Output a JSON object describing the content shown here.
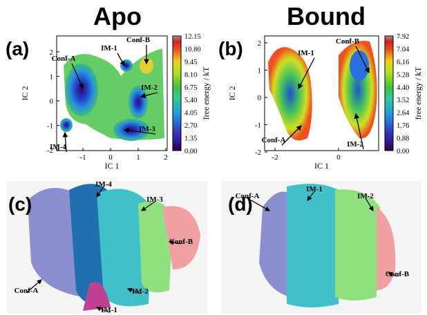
{
  "titles": [
    "Apo",
    "Bound"
  ],
  "panels": [
    {
      "label": "(a)",
      "x_label": "IC 1",
      "y_label": "IC 2",
      "xticks": [
        "-1",
        "0",
        "1",
        "2"
      ],
      "yticks": [
        "2",
        "1",
        "0",
        "-1",
        "-2"
      ],
      "colorbar_label": "free energy / kT",
      "colorbar_ticks": [
        "12.15",
        "10.80",
        "9.45",
        "8.10",
        "6.75",
        "5.40",
        "4.05",
        "2.70",
        "1.35",
        "0.00"
      ],
      "annotations": [
        "Conf-A",
        "IM-1",
        "Conf-B",
        "IM-2",
        "IM-3",
        "IM-4"
      ]
    },
    {
      "label": "(b)",
      "x_label": "IC 1",
      "y_label": "IC 2",
      "xticks": [
        "-2",
        "0"
      ],
      "yticks": [
        "2",
        "1",
        "0",
        "-1",
        "-2"
      ],
      "colorbar_label": "free energy / kT",
      "colorbar_ticks": [
        "7.92",
        "7.04",
        "6.16",
        "5.28",
        "4.40",
        "3.52",
        "2.64",
        "1.76",
        "0.88",
        "0.00"
      ],
      "annotations": [
        "IM-1",
        "Conf-B",
        "Conf-A",
        "IM-2"
      ]
    }
  ],
  "structures": [
    {
      "label": "(c)",
      "annotations": [
        "IM-4",
        "IM-3",
        "Conf-B",
        "Conf-A",
        "IM-2",
        "IM-1"
      ]
    },
    {
      "label": "(d)",
      "annotations": [
        "Conf-A",
        "IM-1",
        "IM-2",
        "Conf-B"
      ]
    }
  ]
}
